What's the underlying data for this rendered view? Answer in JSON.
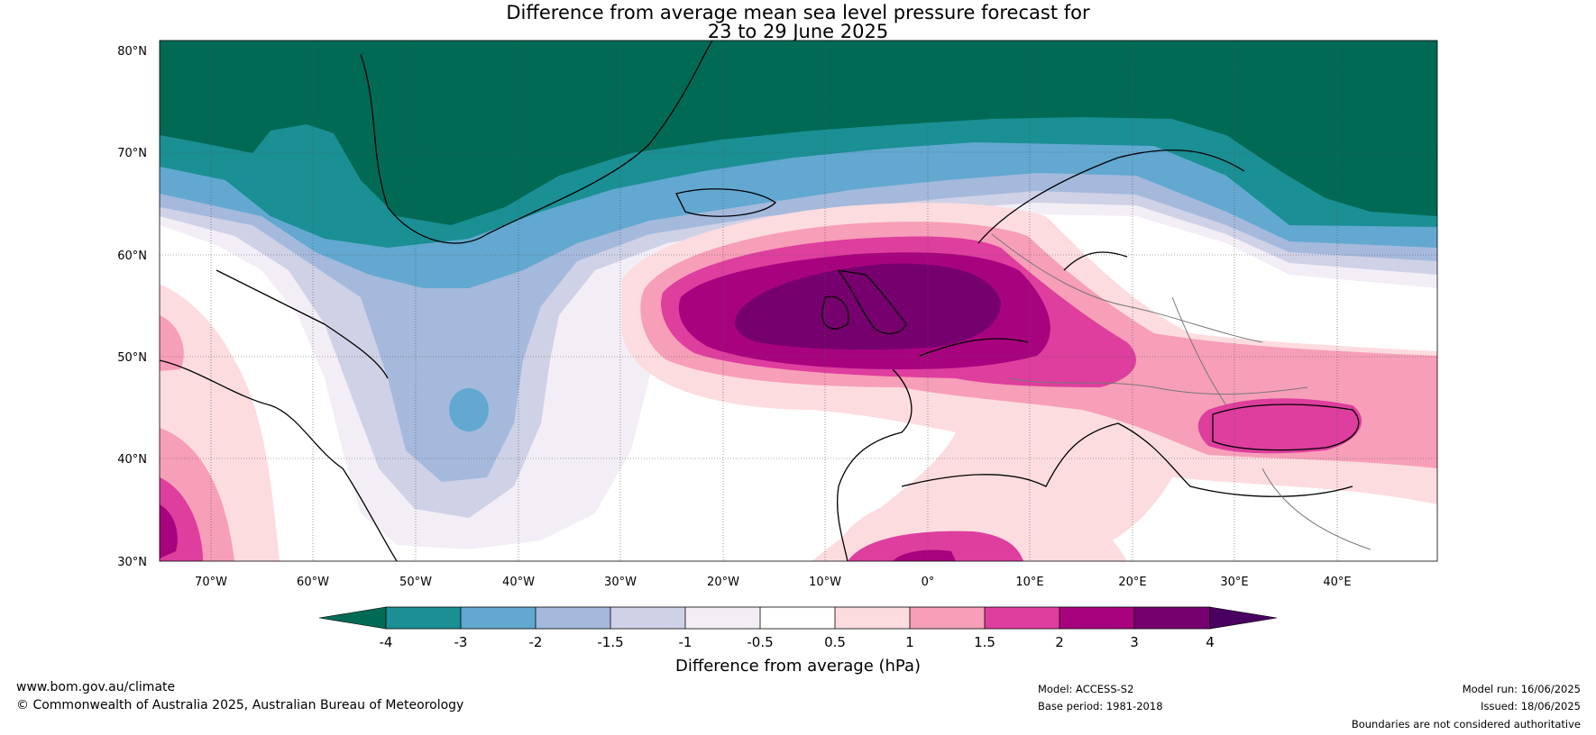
{
  "header": {
    "title_line1": "Difference from average mean sea level pressure forecast for",
    "title_line2": "23 to 29 June 2025"
  },
  "axes": {
    "lat_ticks": [
      "80°N",
      "70°N",
      "60°N",
      "50°N",
      "40°N",
      "30°N"
    ],
    "lon_ticks": [
      "70°W",
      "60°W",
      "50°W",
      "40°W",
      "30°W",
      "20°W",
      "10°W",
      "0°",
      "10°E",
      "20°E",
      "30°E",
      "40°E"
    ]
  },
  "colorbar": {
    "title": "Difference from average (hPa)",
    "labels": [
      "-4",
      "-3",
      "-2",
      "-1.5",
      "-1",
      "-0.5",
      "0.5",
      "1",
      "1.5",
      "2",
      "3",
      "4"
    ],
    "colors": [
      "#006a55",
      "#1a8f94",
      "#62a8d0",
      "#a4b9dc",
      "#cfd1e6",
      "#f3eef6",
      "#ffffff",
      "#fddcdf",
      "#f79eb8",
      "#de3e9e",
      "#a8037f",
      "#77006f",
      "#4a0060"
    ]
  },
  "footer": {
    "website": "www.bom.gov.au/climate",
    "copyright": "© Commonwealth of Australia 2025, Australian Bureau of Meteorology",
    "model": "Model: ACCESS-S2",
    "base_period": "Base period: 1981-2018",
    "model_run": "Model run: 16/06/2025",
    "issued": "Issued: 18/06/2025",
    "disclaimer": "Boundaries are not considered authoritative"
  }
}
